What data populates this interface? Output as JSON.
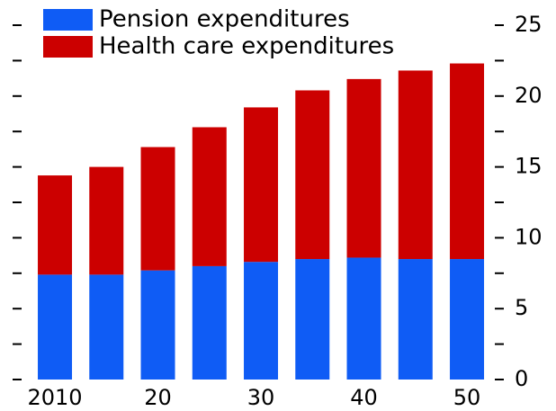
{
  "chart_data": {
    "type": "stacked_bar",
    "categories": [
      "2010",
      null,
      "20",
      null,
      "30",
      null,
      "40",
      null,
      "50"
    ],
    "series": [
      {
        "name": "Pension expenditures",
        "color": "#0f5cf5",
        "values": [
          7.4,
          7.4,
          7.7,
          8.0,
          8.3,
          8.5,
          8.6,
          8.5,
          8.5
        ]
      },
      {
        "name": "Health care expenditures",
        "color": "#cc0000",
        "values": [
          7.0,
          7.6,
          8.7,
          9.8,
          10.9,
          11.9,
          12.6,
          13.3,
          13.8
        ]
      }
    ],
    "ylim": [
      0,
      25
    ],
    "yticks": [
      0,
      5,
      10,
      15,
      20,
      25
    ],
    "minor_yticks": [
      2.5,
      7.5,
      12.5,
      17.5,
      22.5
    ],
    "legend": "top-left"
  }
}
